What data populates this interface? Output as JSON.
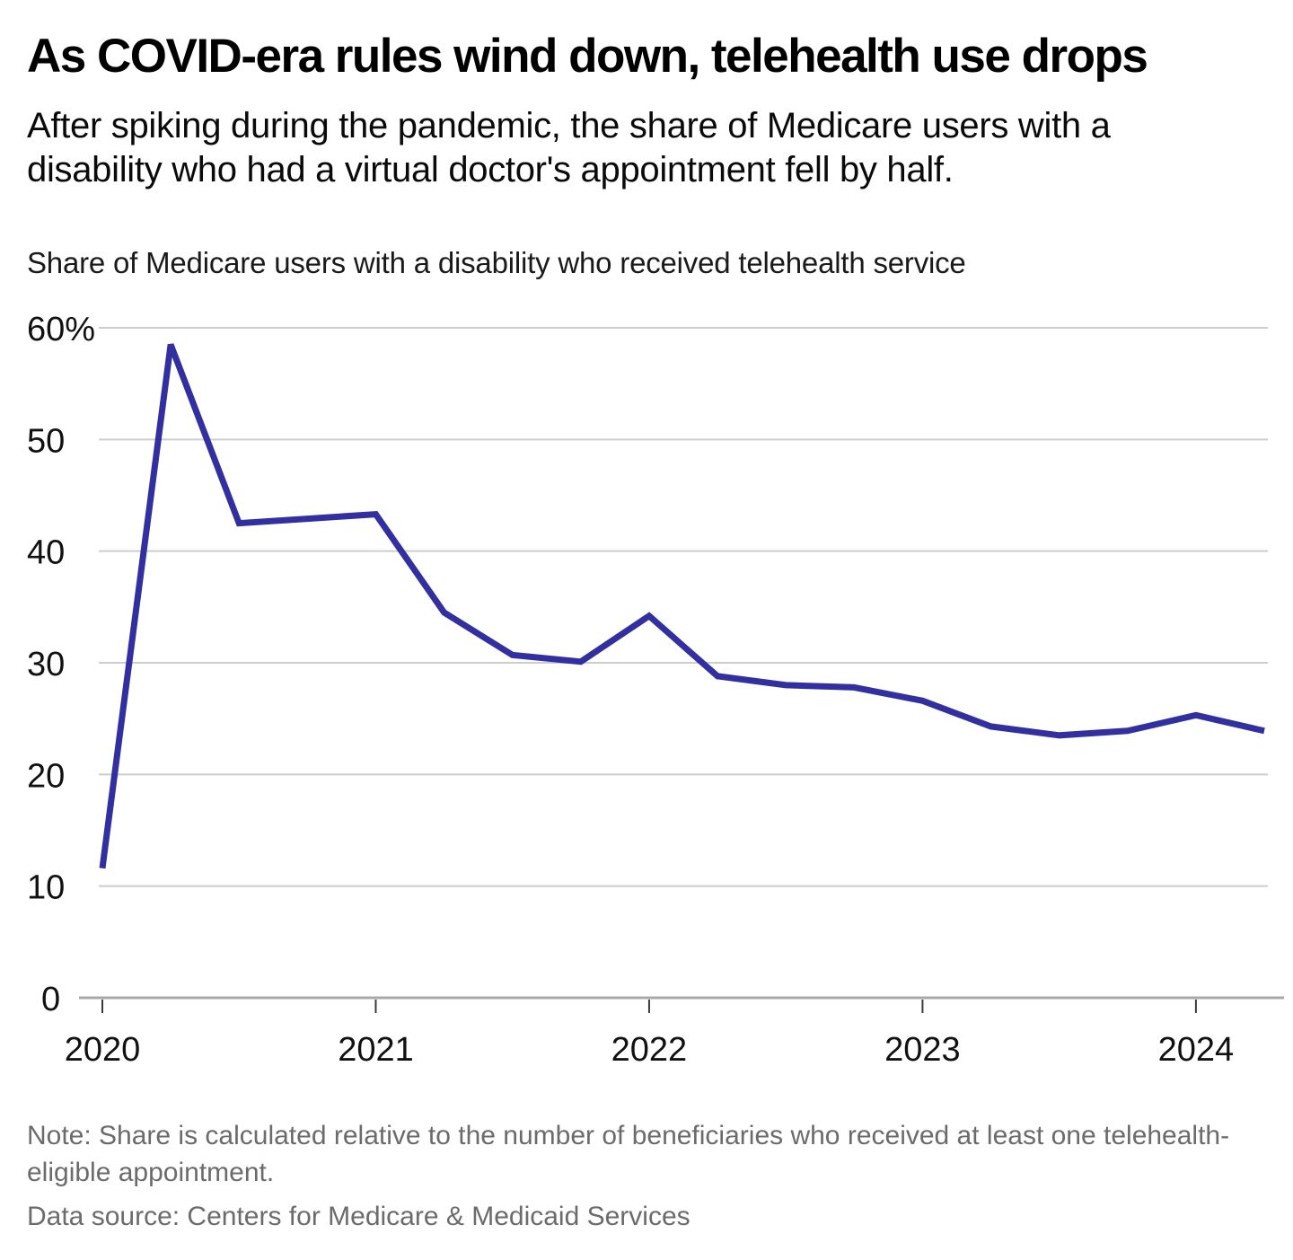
{
  "header": {
    "title": "As COVID-era rules wind down, telehealth use drops",
    "subtitle": "After spiking during the pandemic, the share of Medicare users with a disability who had a virtual doctor's appointment fell by half."
  },
  "chart_data": {
    "type": "line",
    "title": "Share of Medicare users with a disability who received telehealth service",
    "series": [
      {
        "name": "Share of Medicare users with a disability who received telehealth service",
        "values": [
          11.6,
          58.5,
          42.5,
          42.9,
          43.3,
          34.5,
          30.7,
          30.1,
          34.2,
          28.8,
          28.0,
          27.8,
          26.6,
          24.3,
          23.5,
          23.9,
          25.3,
          23.9
        ]
      }
    ],
    "x": [
      "2020 Q1",
      "2020 Q2",
      "2020 Q3",
      "2020 Q4",
      "2021 Q1",
      "2021 Q2",
      "2021 Q3",
      "2021 Q4",
      "2022 Q1",
      "2022 Q2",
      "2022 Q3",
      "2022 Q4",
      "2023 Q1",
      "2023 Q2",
      "2023 Q3",
      "2023 Q4",
      "2024 Q1",
      "2024 Q2"
    ],
    "xlabel": "",
    "ylabel": "",
    "ylim": [
      0,
      60
    ],
    "y_ticks": [
      {
        "value": 0,
        "label": "0"
      },
      {
        "value": 10,
        "label": "10"
      },
      {
        "value": 20,
        "label": "20"
      },
      {
        "value": 30,
        "label": "30"
      },
      {
        "value": 40,
        "label": "40"
      },
      {
        "value": 50,
        "label": "50"
      },
      {
        "value": 60,
        "label": "60%"
      }
    ],
    "x_ticks": [
      {
        "index": 0,
        "label": "2020"
      },
      {
        "index": 4,
        "label": "2021"
      },
      {
        "index": 8,
        "label": "2022"
      },
      {
        "index": 12,
        "label": "2023"
      },
      {
        "index": 16,
        "label": "2024"
      }
    ],
    "grid": "horizontal",
    "legend": "none",
    "colors": {
      "line": "#3230A0",
      "gridline": "#CDCDCD",
      "axis_line": "#A8A8A8",
      "tick_mark": "#3A3A3A",
      "axis_label": "#111111"
    }
  },
  "footer": {
    "note": "Note: Share is calculated relative to the number of beneficiaries who received at least one telehealth-eligible appointment.",
    "source": "Data source: Centers for Medicare & Medicaid Services"
  }
}
